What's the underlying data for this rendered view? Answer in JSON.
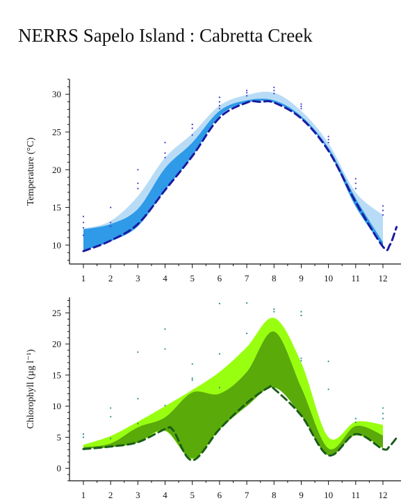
{
  "title": "NERRS Sapelo Island : Cabretta Creek",
  "chart_data": [
    {
      "type": "area",
      "ylabel": "Temperature (°C)",
      "xlim": [
        0.8,
        12.5
      ],
      "ylim": [
        7.5,
        32
      ],
      "x_ticks": [
        "1",
        "2",
        "3",
        "4",
        "5",
        "6",
        "7",
        "8",
        "9",
        "10",
        "11",
        "12"
      ],
      "y_ticks": [
        10,
        15,
        20,
        25,
        30
      ],
      "colors": {
        "outer": "#b9dcf6",
        "inner": "#2e9ae8",
        "line": "#1a1aa0",
        "dots": "#3a3ac8"
      },
      "series": [
        {
          "role": "outer-band",
          "x": [
            1,
            2,
            3,
            4,
            5,
            6,
            7,
            8,
            9,
            10,
            11,
            12
          ],
          "upper": [
            12.2,
            13.2,
            16.5,
            21.6,
            24.8,
            28.5,
            29.9,
            30.2,
            27.8,
            23.5,
            17.0,
            14.0
          ],
          "lower": [
            9.4,
            10.7,
            12.9,
            18.2,
            22.4,
            27.3,
            28.9,
            29.0,
            27.0,
            22.7,
            15.2,
            9.9
          ]
        },
        {
          "role": "inner-band",
          "x": [
            1,
            2,
            3,
            4,
            5,
            6,
            7,
            8,
            9,
            10,
            11,
            12
          ],
          "upper": [
            12.1,
            12.8,
            14.8,
            20.2,
            23.6,
            27.8,
            29.2,
            29.2,
            27.1,
            22.9,
            16.2,
            10.4
          ],
          "lower": [
            9.3,
            10.5,
            12.5,
            17.3,
            21.8,
            27.1,
            28.9,
            28.9,
            26.8,
            22.5,
            15.1,
            9.8
          ]
        },
        {
          "role": "dashed-line",
          "x": [
            1,
            2,
            3,
            4,
            5,
            6,
            7,
            7.5,
            8,
            9,
            10,
            11,
            12,
            12.25,
            12.5
          ],
          "y": [
            9.2,
            10.6,
            12.8,
            17.3,
            21.8,
            26.9,
            28.9,
            29.0,
            28.9,
            26.8,
            22.5,
            15.7,
            9.8,
            10.0,
            12.4
          ]
        },
        {
          "role": "dots",
          "points": [
            [
              1,
              13.8
            ],
            [
              1,
              13.0
            ],
            [
              1,
              12.3
            ],
            [
              1,
              11.3
            ],
            [
              2,
              15.0
            ],
            [
              2,
              13.0
            ],
            [
              2,
              12.5
            ],
            [
              3,
              20.0
            ],
            [
              3,
              18.2
            ],
            [
              3,
              17.5
            ],
            [
              4,
              23.6
            ],
            [
              4,
              22.2
            ],
            [
              4,
              21.6
            ],
            [
              5,
              26.0
            ],
            [
              5,
              25.5
            ],
            [
              5,
              24.6
            ],
            [
              6,
              29.6
            ],
            [
              6,
              29.0
            ],
            [
              6,
              28.5
            ],
            [
              6,
              28.1
            ],
            [
              7,
              30.5
            ],
            [
              7,
              30.2
            ],
            [
              7,
              29.8
            ],
            [
              8,
              30.9
            ],
            [
              8,
              30.5
            ],
            [
              8,
              30.1
            ],
            [
              9,
              28.7
            ],
            [
              9,
              28.4
            ],
            [
              9,
              28.1
            ],
            [
              10,
              24.4
            ],
            [
              10,
              24.0
            ],
            [
              10,
              23.6
            ],
            [
              11,
              18.8
            ],
            [
              11,
              18.2
            ],
            [
              11,
              17.5
            ],
            [
              12,
              15.2
            ],
            [
              12,
              14.6
            ],
            [
              12,
              14.0
            ]
          ]
        }
      ]
    },
    {
      "type": "area",
      "ylabel": "Chlorophyll (µg l⁻¹)",
      "xlim": [
        0.8,
        12.5
      ],
      "ylim": [
        -2,
        27.5
      ],
      "x_ticks": [
        "1",
        "2",
        "3",
        "4",
        "5",
        "6",
        "7",
        "8",
        "9",
        "10",
        "11",
        "12"
      ],
      "y_ticks": [
        0,
        5,
        10,
        15,
        20,
        25
      ],
      "colors": {
        "outer": "#99ff11",
        "inner": "#5aaa0a",
        "line": "#1a5c1a",
        "dots": "#2a8a8a"
      },
      "series": [
        {
          "role": "outer-band",
          "x": [
            1,
            2,
            3,
            4,
            5,
            6,
            7,
            8,
            9,
            10,
            11,
            12
          ],
          "upper": [
            3.8,
            5.2,
            7.5,
            10.0,
            12.6,
            15.5,
            19.5,
            24.2,
            17.0,
            5.0,
            7.5,
            7.0
          ],
          "lower": [
            3.2,
            3.4,
            4.1,
            6.0,
            1.5,
            6.2,
            10.0,
            13.0,
            8.6,
            2.1,
            5.3,
            3.2
          ]
        },
        {
          "role": "inner-band",
          "x": [
            1,
            2,
            3,
            4,
            5,
            6,
            7,
            8,
            9,
            10,
            11,
            12
          ],
          "upper": [
            3.4,
            4.0,
            6.6,
            8.2,
            12.2,
            12.0,
            15.5,
            22.0,
            13.0,
            3.2,
            6.8,
            5.3
          ],
          "lower": [
            3.2,
            3.4,
            4.2,
            6.1,
            1.6,
            6.3,
            10.0,
            13.0,
            8.5,
            2.1,
            5.4,
            3.3
          ]
        },
        {
          "role": "dashed-line",
          "x": [
            1,
            2,
            3,
            4,
            4.3,
            5,
            6,
            7,
            7.8,
            8,
            9,
            10,
            11,
            12,
            12.25,
            12.5
          ],
          "y": [
            3.1,
            3.5,
            4.2,
            6.3,
            6.1,
            1.3,
            6.3,
            10.5,
            13.0,
            12.8,
            8.5,
            2.1,
            5.5,
            3.1,
            3.6,
            4.9
          ],
          "dash_color": "#1a5c1a"
        },
        {
          "role": "dots",
          "points": [
            [
              1,
              5.5
            ],
            [
              1,
              5.0
            ],
            [
              2,
              9.7
            ],
            [
              2,
              8.3
            ],
            [
              2,
              4.8
            ],
            [
              3,
              18.7
            ],
            [
              3,
              11.2
            ],
            [
              3,
              7.2
            ],
            [
              4,
              22.4
            ],
            [
              4,
              19.2
            ],
            [
              4,
              10.1
            ],
            [
              5,
              16.8
            ],
            [
              5,
              14.5
            ],
            [
              5,
              14.2
            ],
            [
              6,
              26.5
            ],
            [
              6,
              18.4
            ],
            [
              6,
              13.0
            ],
            [
              7,
              26.6
            ],
            [
              7,
              21.7
            ],
            [
              8,
              25.6
            ],
            [
              8,
              25.2
            ],
            [
              9,
              25.2
            ],
            [
              9,
              24.6
            ],
            [
              9,
              17.7
            ],
            [
              9,
              17.3
            ],
            [
              10,
              17.2
            ],
            [
              10,
              12.7
            ],
            [
              11,
              8.0
            ],
            [
              11,
              7.4
            ],
            [
              12,
              9.7
            ],
            [
              12,
              8.8
            ],
            [
              12,
              8.0
            ]
          ]
        }
      ]
    }
  ]
}
